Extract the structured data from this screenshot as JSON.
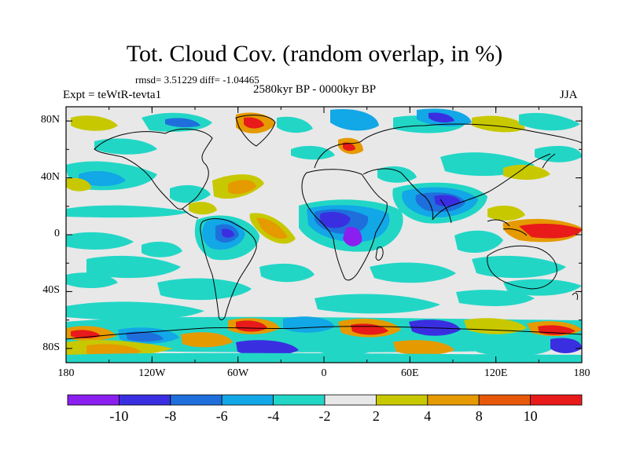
{
  "title": "Tot. Cloud Cov. (random overlap, in %)",
  "stats": "rmsd= 3.51229 diff= -1.04465",
  "expt": "Expt = teWtR-tevta1",
  "period": "2580kyr BP - 0000kyr BP",
  "season": "JJA",
  "map": {
    "lon_range": [
      -180,
      180
    ],
    "lat_range": [
      -90,
      90
    ],
    "y_ticks": [
      {
        "label": "80N",
        "lat": 80
      },
      {
        "label": "40N",
        "lat": 40
      },
      {
        "label": "0",
        "lat": 0
      },
      {
        "label": "40S",
        "lat": -40
      },
      {
        "label": "80S",
        "lat": -80
      }
    ],
    "x_ticks": [
      {
        "label": "180",
        "lon": -180
      },
      {
        "label": "120W",
        "lon": -120
      },
      {
        "label": "60W",
        "lon": -60
      },
      {
        "label": "0",
        "lon": 0
      },
      {
        "label": "60E",
        "lon": 60
      },
      {
        "label": "120E",
        "lon": 120
      },
      {
        "label": "180",
        "lon": 180
      }
    ],
    "background_color": "#e8e8e8"
  },
  "colorbar": {
    "colors": [
      "#8a1ff0",
      "#3a2fe0",
      "#1e6fdc",
      "#12a7e6",
      "#22d6c6",
      "#e8e8e8",
      "#c8c800",
      "#e59a00",
      "#e8580a",
      "#e81a1a"
    ],
    "tick_labels": [
      "-10",
      "-8",
      "-6",
      "-4",
      "-2",
      "2",
      "4",
      "8",
      "10"
    ]
  }
}
